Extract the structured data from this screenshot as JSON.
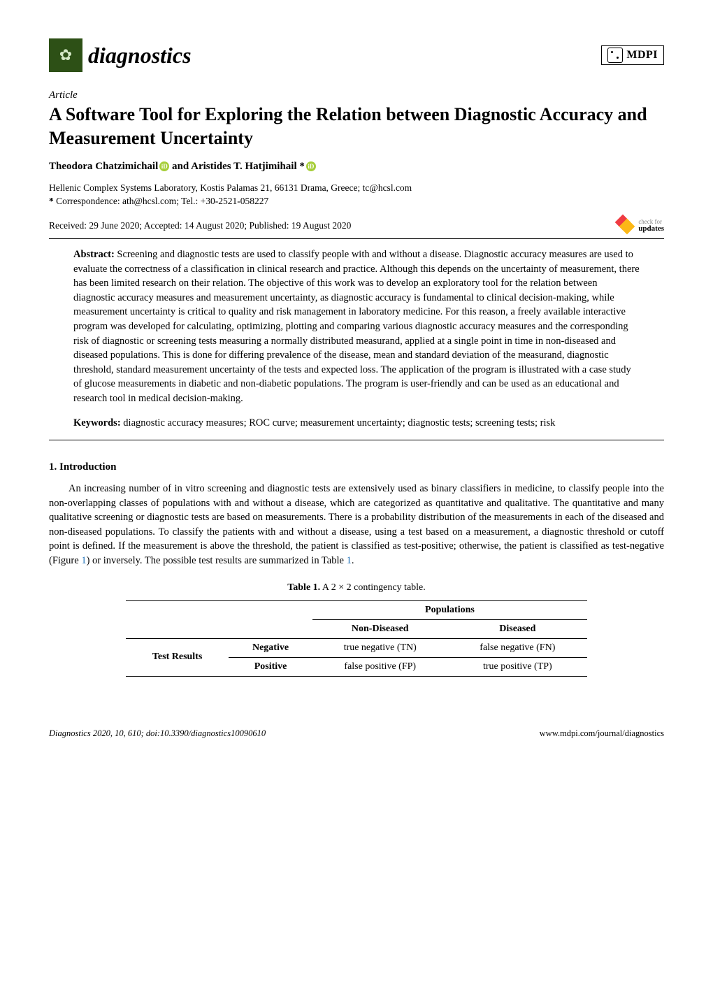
{
  "colors": {
    "journal_green": "#2d5016",
    "journal_leaf": "#d4e8c6",
    "orcid_green": "#a6ce39",
    "link_blue": "#1d6fb8",
    "crossref_red": "#ef3b42",
    "crossref_yellow": "#fcb817",
    "text": "#000000",
    "bg": "#ffffff"
  },
  "header": {
    "journal_name": "diagnostics",
    "publisher": "MDPI"
  },
  "article": {
    "type": "Article",
    "title": "A Software Tool for Exploring the Relation between Diagnostic Accuracy and Measurement Uncertainty",
    "authors_prefix": "Theodora Chatzimichail",
    "authors_mid": " and ",
    "authors_suffix": "Aristides T. Hatjimihail *",
    "affiliation": "Hellenic Complex Systems Laboratory, Kostis Palamas 21, 66131 Drama, Greece; tc@hcsl.com",
    "correspondence_label": "*",
    "correspondence": " Correspondence: ath@hcsl.com; Tel.: +30-2521-058227",
    "dates": "Received: 29 June 2020; Accepted: 14 August 2020; Published: 19 August 2020",
    "crossref_top": "check for",
    "crossref_bot": "updates"
  },
  "abstract": {
    "label": "Abstract: ",
    "text": "Screening and diagnostic tests are used to classify people with and without a disease. Diagnostic accuracy measures are used to evaluate the correctness of a classification in clinical research and practice. Although this depends on the uncertainty of measurement, there has been limited research on their relation. The objective of this work was to develop an exploratory tool for the relation between diagnostic accuracy measures and measurement uncertainty, as diagnostic accuracy is fundamental to clinical decision-making, while measurement uncertainty is critical to quality and risk management in laboratory medicine. For this reason, a freely available interactive program was developed for calculating, optimizing, plotting and comparing various diagnostic accuracy measures and the corresponding risk of diagnostic or screening tests measuring a normally distributed measurand, applied at a single point in time in non-diseased and diseased populations. This is done for differing prevalence of the disease, mean and standard deviation of the measurand, diagnostic threshold, standard measurement uncertainty of the tests and expected loss. The application of the program is illustrated with a case study of glucose measurements in diabetic and non-diabetic populations. The program is user-friendly and can be used as an educational and research tool in medical decision-making."
  },
  "keywords": {
    "label": "Keywords: ",
    "text": "diagnostic accuracy measures; ROC curve; measurement uncertainty; diagnostic tests; screening tests; risk"
  },
  "section1": {
    "heading": "1. Introduction",
    "para1a": "An increasing number of in vitro screening and diagnostic tests are extensively used as binary classifiers in medicine, to classify people into the non-overlapping classes of populations with and without a disease, which are categorized as quantitative and qualitative. The quantitative and many qualitative screening or diagnostic tests are based on measurements. There is a probability distribution of the measurements in each of the diseased and non-diseased populations. To classify the patients with and without a disease, using a test based on a measurement, a diagnostic threshold or cutoff point is defined. If the measurement is above the threshold, the patient is classified as test-positive; otherwise, the patient is classified as test-negative (Figure ",
    "fig_ref": "1",
    "para1b": ") or inversely. The possible test results are summarized in Table ",
    "tab_ref": "1",
    "para1c": "."
  },
  "table1": {
    "caption_label": "Table 1.",
    "caption_text": " A 2 × 2 contingency table.",
    "pop_header": "Populations",
    "col_nondiseased": "Non-Diseased",
    "col_diseased": "Diseased",
    "row_header": "Test Results",
    "row_negative": "Negative",
    "row_positive": "Positive",
    "cell_tn": "true negative (TN)",
    "cell_fn": "false negative (FN)",
    "cell_fp": "false positive (FP)",
    "cell_tp": "true positive (TP)"
  },
  "footer": {
    "left": "Diagnostics 2020, 10, 610; doi:10.3390/diagnostics10090610",
    "right": "www.mdpi.com/journal/diagnostics"
  }
}
